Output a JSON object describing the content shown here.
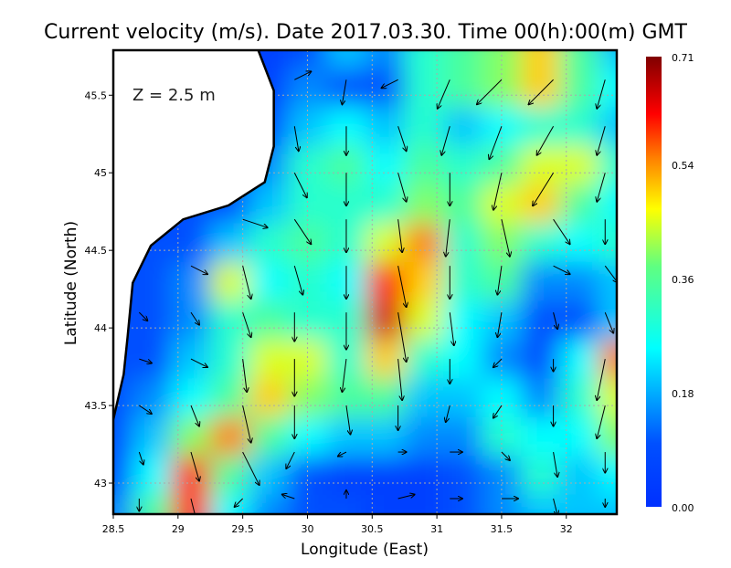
{
  "chart_data": {
    "type": "heatmap",
    "title": "Current velocity (m/s). Date 2017.03.30. Time 00(h):00(m) GMT",
    "xlabel": "Longitude (East)",
    "ylabel": "Latitude (North)",
    "annotation": "Z = 2.5 m",
    "xlim": [
      28.5,
      32.39
    ],
    "ylim": [
      42.8,
      45.79
    ],
    "grid": true,
    "x_ticks": [
      "28.5",
      "29",
      "29.5",
      "30",
      "30.5",
      "31",
      "31.5",
      "32"
    ],
    "y_ticks": [
      "43",
      "43.5",
      "44",
      "44.5",
      "45",
      "45.5"
    ],
    "colorbar": {
      "ticks": [
        "0.00",
        "0.18",
        "0.36",
        "0.54",
        "0.71"
      ],
      "range": [
        0,
        0.71
      ],
      "colormap": [
        [
          0,
          "#0030ff"
        ],
        [
          0.1,
          "#0050ff"
        ],
        [
          0.25,
          "#00ffff"
        ],
        [
          0.38,
          "#60ff80"
        ],
        [
          0.47,
          "#ffff00"
        ],
        [
          0.55,
          "#ff8000"
        ],
        [
          0.62,
          "#ff0000"
        ],
        [
          0.71,
          "#800000"
        ]
      ]
    },
    "speed_grid": {
      "lon": [
        28.5,
        28.8,
        29.1,
        29.4,
        29.7,
        30.0,
        30.3,
        30.6,
        30.9,
        31.2,
        31.5,
        31.8,
        32.1,
        32.4
      ],
      "lat": [
        45.8,
        45.55,
        45.3,
        45.05,
        44.8,
        44.55,
        44.3,
        44.05,
        43.8,
        43.55,
        43.3,
        43.05,
        42.8
      ],
      "values": [
        [
          null,
          null,
          null,
          null,
          0.05,
          0.1,
          0.2,
          0.15,
          0.3,
          0.35,
          0.4,
          0.5,
          0.35,
          0.2
        ],
        [
          null,
          null,
          null,
          null,
          0.05,
          0.15,
          0.1,
          0.1,
          0.3,
          0.35,
          0.4,
          0.5,
          0.35,
          0.25
        ],
        [
          null,
          null,
          null,
          null,
          0.1,
          0.2,
          0.25,
          0.2,
          0.3,
          0.2,
          0.25,
          0.3,
          0.3,
          0.2
        ],
        [
          null,
          null,
          null,
          null,
          0.15,
          0.3,
          0.35,
          0.25,
          0.35,
          0.3,
          0.35,
          0.45,
          0.45,
          0.3
        ],
        [
          null,
          null,
          null,
          0.1,
          0.2,
          0.3,
          0.3,
          0.3,
          0.4,
          0.35,
          0.45,
          0.5,
          0.35,
          0.25
        ],
        [
          null,
          null,
          0.1,
          0.2,
          0.3,
          0.35,
          0.3,
          0.45,
          0.55,
          0.3,
          0.4,
          0.3,
          0.25,
          0.3
        ],
        [
          null,
          0.1,
          0.15,
          0.45,
          0.25,
          0.3,
          0.25,
          0.6,
          0.5,
          0.3,
          0.35,
          0.15,
          0.15,
          0.2
        ],
        [
          null,
          0.1,
          0.15,
          0.3,
          0.35,
          0.3,
          0.3,
          0.65,
          0.45,
          0.25,
          0.2,
          0.1,
          0.1,
          0.2
        ],
        [
          null,
          0.1,
          0.2,
          0.3,
          0.45,
          0.45,
          0.3,
          0.5,
          0.3,
          0.25,
          0.15,
          0.1,
          0.25,
          0.55
        ],
        [
          0.1,
          0.15,
          0.25,
          0.35,
          0.5,
          0.4,
          0.35,
          0.35,
          0.2,
          0.2,
          0.25,
          0.15,
          0.3,
          0.45
        ],
        [
          0.1,
          0.2,
          0.4,
          0.55,
          0.35,
          0.25,
          0.2,
          0.2,
          0.15,
          0.15,
          0.3,
          0.25,
          0.25,
          0.4
        ],
        [
          0.1,
          0.25,
          0.6,
          0.35,
          0.2,
          0.1,
          0.05,
          0.05,
          0.05,
          0.1,
          0.15,
          0.3,
          0.2,
          0.25
        ],
        [
          0.15,
          0.35,
          0.6,
          0.25,
          0.15,
          0.1,
          0.1,
          0.05,
          0.05,
          0.1,
          0.15,
          0.2,
          0.2,
          0.2
        ]
      ]
    },
    "vectors": [
      [
        29.9,
        45.6,
        0.2,
        0.1
      ],
      [
        30.3,
        45.6,
        -0.05,
        -0.3
      ],
      [
        30.7,
        45.6,
        -0.2,
        -0.1
      ],
      [
        31.1,
        45.6,
        -0.15,
        -0.35
      ],
      [
        31.5,
        45.6,
        -0.3,
        -0.3
      ],
      [
        31.9,
        45.6,
        -0.3,
        -0.3
      ],
      [
        32.3,
        45.6,
        -0.1,
        -0.35
      ],
      [
        29.9,
        45.3,
        0.05,
        -0.3
      ],
      [
        30.3,
        45.3,
        0.0,
        -0.35
      ],
      [
        30.7,
        45.3,
        0.1,
        -0.3
      ],
      [
        31.1,
        45.3,
        -0.1,
        -0.35
      ],
      [
        31.5,
        45.3,
        -0.15,
        -0.4
      ],
      [
        31.9,
        45.3,
        -0.2,
        -0.35
      ],
      [
        32.3,
        45.3,
        -0.1,
        -0.35
      ],
      [
        29.9,
        45.0,
        0.15,
        -0.3
      ],
      [
        30.3,
        45.0,
        0.0,
        -0.4
      ],
      [
        30.7,
        45.0,
        0.1,
        -0.35
      ],
      [
        31.1,
        45.0,
        0.0,
        -0.4
      ],
      [
        31.5,
        45.0,
        -0.1,
        -0.45
      ],
      [
        31.9,
        45.0,
        -0.25,
        -0.4
      ],
      [
        32.3,
        45.0,
        -0.1,
        -0.35
      ],
      [
        29.5,
        44.7,
        0.3,
        -0.1
      ],
      [
        29.9,
        44.7,
        0.2,
        -0.3
      ],
      [
        30.3,
        44.7,
        0.0,
        -0.4
      ],
      [
        30.7,
        44.7,
        0.05,
        -0.4
      ],
      [
        31.1,
        44.7,
        -0.05,
        -0.45
      ],
      [
        31.5,
        44.7,
        0.1,
        -0.45
      ],
      [
        31.9,
        44.7,
        0.2,
        -0.3
      ],
      [
        32.3,
        44.7,
        0.0,
        -0.3
      ],
      [
        29.1,
        44.4,
        0.2,
        -0.1
      ],
      [
        29.5,
        44.4,
        0.1,
        -0.4
      ],
      [
        29.9,
        44.4,
        0.1,
        -0.35
      ],
      [
        30.3,
        44.4,
        0.0,
        -0.4
      ],
      [
        30.7,
        44.4,
        0.1,
        -0.5
      ],
      [
        31.1,
        44.4,
        0.0,
        -0.4
      ],
      [
        31.5,
        44.4,
        -0.05,
        -0.35
      ],
      [
        31.9,
        44.4,
        0.2,
        -0.1
      ],
      [
        32.3,
        44.4,
        0.15,
        -0.2
      ],
      [
        28.7,
        44.1,
        0.1,
        -0.1
      ],
      [
        29.1,
        44.1,
        0.1,
        -0.15
      ],
      [
        29.5,
        44.1,
        0.1,
        -0.3
      ],
      [
        29.9,
        44.1,
        0.0,
        -0.35
      ],
      [
        30.3,
        44.1,
        0.0,
        -0.45
      ],
      [
        30.7,
        44.1,
        0.1,
        -0.6
      ],
      [
        31.1,
        44.1,
        0.05,
        -0.4
      ],
      [
        31.5,
        44.1,
        -0.05,
        -0.3
      ],
      [
        31.9,
        44.1,
        0.05,
        -0.2
      ],
      [
        32.3,
        44.1,
        0.1,
        -0.25
      ],
      [
        28.7,
        43.8,
        0.15,
        -0.05
      ],
      [
        29.1,
        43.8,
        0.2,
        -0.1
      ],
      [
        29.5,
        43.8,
        0.05,
        -0.4
      ],
      [
        29.9,
        43.8,
        0.0,
        -0.45
      ],
      [
        30.3,
        43.8,
        -0.05,
        -0.4
      ],
      [
        30.7,
        43.8,
        0.05,
        -0.5
      ],
      [
        31.1,
        43.8,
        0.0,
        -0.3
      ],
      [
        31.5,
        43.8,
        -0.1,
        -0.1
      ],
      [
        31.9,
        43.8,
        0.0,
        -0.15
      ],
      [
        32.3,
        43.8,
        -0.1,
        -0.5
      ],
      [
        28.7,
        43.5,
        0.15,
        -0.1
      ],
      [
        29.1,
        43.5,
        0.1,
        -0.25
      ],
      [
        29.5,
        43.5,
        0.1,
        -0.45
      ],
      [
        29.9,
        43.5,
        0.0,
        -0.4
      ],
      [
        30.3,
        43.5,
        0.05,
        -0.35
      ],
      [
        30.7,
        43.5,
        0.0,
        -0.3
      ],
      [
        31.1,
        43.5,
        -0.05,
        -0.2
      ],
      [
        31.5,
        43.5,
        -0.1,
        -0.15
      ],
      [
        31.9,
        43.5,
        0.0,
        -0.25
      ],
      [
        32.3,
        43.5,
        -0.1,
        -0.4
      ],
      [
        28.7,
        43.2,
        0.05,
        -0.15
      ],
      [
        29.1,
        43.2,
        0.1,
        -0.35
      ],
      [
        29.5,
        43.2,
        0.2,
        -0.4
      ],
      [
        29.9,
        43.2,
        -0.1,
        -0.2
      ],
      [
        30.3,
        43.2,
        -0.1,
        -0.05
      ],
      [
        30.7,
        43.2,
        0.1,
        0.0
      ],
      [
        31.1,
        43.2,
        0.15,
        0.0
      ],
      [
        31.5,
        43.2,
        0.1,
        -0.1
      ],
      [
        31.9,
        43.2,
        0.05,
        -0.3
      ],
      [
        32.3,
        43.2,
        0.0,
        -0.25
      ],
      [
        28.7,
        42.9,
        0.0,
        -0.15
      ],
      [
        29.1,
        42.9,
        0.1,
        -0.4
      ],
      [
        29.5,
        42.9,
        -0.1,
        -0.1
      ],
      [
        29.9,
        42.9,
        -0.15,
        0.05
      ],
      [
        30.3,
        42.9,
        0.0,
        0.1
      ],
      [
        30.7,
        42.9,
        0.2,
        0.05
      ],
      [
        31.1,
        42.9,
        0.15,
        0.0
      ],
      [
        31.5,
        42.9,
        0.2,
        0.0
      ],
      [
        31.9,
        42.9,
        0.05,
        -0.2
      ],
      [
        32.3,
        42.9,
        0.0,
        -0.1
      ]
    ],
    "coastline": [
      [
        29.62,
        45.79
      ],
      [
        29.74,
        45.53
      ],
      [
        29.74,
        45.17
      ],
      [
        29.67,
        44.94
      ],
      [
        29.39,
        44.79
      ],
      [
        29.04,
        44.7
      ],
      [
        28.79,
        44.53
      ],
      [
        28.65,
        44.29
      ],
      [
        28.61,
        43.94
      ],
      [
        28.58,
        43.7
      ],
      [
        28.5,
        43.41
      ]
    ],
    "land_color": "#ffffff",
    "coast_color": "#000000"
  }
}
